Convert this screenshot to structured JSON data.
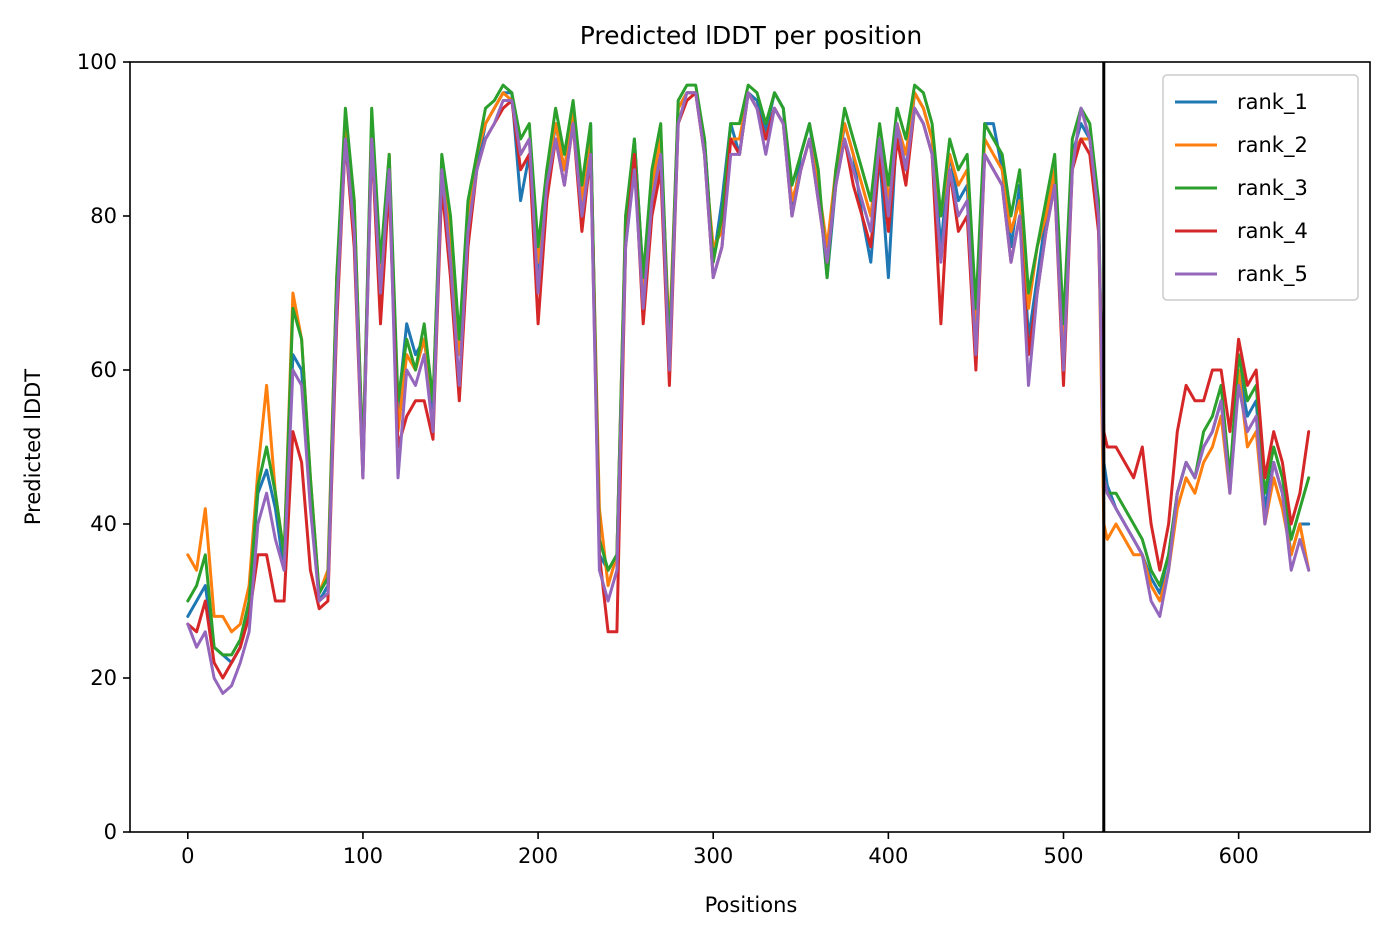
{
  "chart_data": {
    "type": "line",
    "title": "Predicted lDDT per position",
    "xlabel": "Positions",
    "ylabel": "Predicted lDDT",
    "xlim": [
      -33,
      675
    ],
    "ylim": [
      0,
      100
    ],
    "xticks": [
      0,
      100,
      200,
      300,
      400,
      500,
      600
    ],
    "yticks": [
      0,
      20,
      40,
      60,
      80,
      100
    ],
    "grid": false,
    "legend_position": "top-right",
    "chain_boundary_x": 523,
    "series": [
      {
        "name": "rank_1",
        "color": "#1f77b4",
        "x": [
          0,
          5,
          10,
          15,
          20,
          25,
          30,
          35,
          40,
          45,
          50,
          55,
          60,
          65,
          70,
          75,
          80,
          85,
          90,
          95,
          100,
          105,
          110,
          115,
          120,
          125,
          130,
          135,
          140,
          145,
          150,
          155,
          160,
          165,
          170,
          175,
          180,
          185,
          190,
          195,
          200,
          205,
          210,
          215,
          220,
          225,
          230,
          235,
          240,
          245,
          250,
          255,
          260,
          265,
          270,
          275,
          280,
          285,
          290,
          295,
          300,
          305,
          310,
          315,
          320,
          325,
          330,
          335,
          340,
          345,
          350,
          355,
          360,
          365,
          370,
          375,
          380,
          385,
          390,
          395,
          400,
          405,
          410,
          415,
          420,
          425,
          430,
          435,
          440,
          445,
          450,
          455,
          460,
          465,
          470,
          475,
          480,
          485,
          490,
          495,
          500,
          505,
          510,
          515,
          520,
          523,
          525,
          530,
          535,
          540,
          545,
          550,
          555,
          560,
          565,
          570,
          575,
          580,
          585,
          590,
          595,
          600,
          605,
          610,
          615,
          620,
          625,
          630,
          635,
          640
        ],
        "y": [
          28,
          30,
          32,
          24,
          23,
          22,
          24,
          30,
          44,
          47,
          42,
          34,
          62,
          60,
          44,
          30,
          32,
          70,
          92,
          80,
          48,
          92,
          68,
          86,
          55,
          66,
          62,
          64,
          55,
          86,
          76,
          62,
          78,
          86,
          92,
          94,
          96,
          96,
          82,
          88,
          72,
          84,
          92,
          86,
          94,
          80,
          92,
          36,
          34,
          36,
          78,
          90,
          72,
          84,
          88,
          60,
          94,
          96,
          96,
          90,
          74,
          82,
          92,
          88,
          96,
          95,
          91,
          96,
          94,
          80,
          88,
          92,
          84,
          72,
          84,
          92,
          88,
          80,
          74,
          88,
          72,
          92,
          86,
          96,
          94,
          90,
          76,
          88,
          82,
          84,
          62,
          92,
          92,
          86,
          76,
          84,
          64,
          72,
          80,
          86,
          60,
          88,
          92,
          90,
          80,
          48,
          45,
          42,
          40,
          38,
          36,
          33,
          31,
          36,
          44,
          48,
          46,
          50,
          52,
          56,
          46,
          60,
          54,
          56,
          42,
          48,
          44,
          36,
          40,
          40
        ]
      },
      {
        "name": "rank_2",
        "color": "#ff7f0e",
        "x": [
          0,
          5,
          10,
          15,
          20,
          25,
          30,
          35,
          40,
          45,
          50,
          55,
          60,
          65,
          70,
          75,
          80,
          85,
          90,
          95,
          100,
          105,
          110,
          115,
          120,
          125,
          130,
          135,
          140,
          145,
          150,
          155,
          160,
          165,
          170,
          175,
          180,
          185,
          190,
          195,
          200,
          205,
          210,
          215,
          220,
          225,
          230,
          235,
          240,
          245,
          250,
          255,
          260,
          265,
          270,
          275,
          280,
          285,
          290,
          295,
          300,
          305,
          310,
          315,
          320,
          325,
          330,
          335,
          340,
          345,
          350,
          355,
          360,
          365,
          370,
          375,
          380,
          385,
          390,
          395,
          400,
          405,
          410,
          415,
          420,
          425,
          430,
          435,
          440,
          445,
          450,
          455,
          460,
          465,
          470,
          475,
          480,
          485,
          490,
          495,
          500,
          505,
          510,
          515,
          520,
          523,
          525,
          530,
          535,
          540,
          545,
          550,
          555,
          560,
          565,
          570,
          575,
          580,
          585,
          590,
          595,
          600,
          605,
          610,
          615,
          620,
          625,
          630,
          635,
          640
        ],
        "y": [
          36,
          34,
          42,
          28,
          28,
          26,
          27,
          32,
          47,
          58,
          44,
          36,
          70,
          64,
          46,
          31,
          34,
          72,
          92,
          82,
          48,
          92,
          72,
          88,
          52,
          62,
          60,
          64,
          56,
          87,
          78,
          62,
          80,
          88,
          92,
          94,
          96,
          95,
          88,
          90,
          74,
          86,
          92,
          86,
          94,
          82,
          90,
          42,
          32,
          36,
          80,
          88,
          70,
          84,
          90,
          64,
          94,
          96,
          96,
          88,
          76,
          78,
          90,
          90,
          96,
          94,
          90,
          94,
          92,
          82,
          86,
          90,
          84,
          76,
          86,
          92,
          88,
          84,
          80,
          90,
          82,
          92,
          88,
          96,
          94,
          90,
          80,
          88,
          84,
          86,
          66,
          90,
          88,
          86,
          78,
          82,
          68,
          76,
          80,
          86,
          64,
          88,
          90,
          90,
          80,
          40,
          38,
          40,
          38,
          36,
          36,
          32,
          30,
          34,
          42,
          46,
          44,
          48,
          50,
          54,
          44,
          60,
          50,
          52,
          40,
          46,
          42,
          36,
          40,
          34
        ]
      },
      {
        "name": "rank_3",
        "color": "#2ca02c",
        "x": [
          0,
          5,
          10,
          15,
          20,
          25,
          30,
          35,
          40,
          45,
          50,
          55,
          60,
          65,
          70,
          75,
          80,
          85,
          90,
          95,
          100,
          105,
          110,
          115,
          120,
          125,
          130,
          135,
          140,
          145,
          150,
          155,
          160,
          165,
          170,
          175,
          180,
          185,
          190,
          195,
          200,
          205,
          210,
          215,
          220,
          225,
          230,
          235,
          240,
          245,
          250,
          255,
          260,
          265,
          270,
          275,
          280,
          285,
          290,
          295,
          300,
          305,
          310,
          315,
          320,
          325,
          330,
          335,
          340,
          345,
          350,
          355,
          360,
          365,
          370,
          375,
          380,
          385,
          390,
          395,
          400,
          405,
          410,
          415,
          420,
          425,
          430,
          435,
          440,
          445,
          450,
          455,
          460,
          465,
          470,
          475,
          480,
          485,
          490,
          495,
          500,
          505,
          510,
          515,
          520,
          523,
          525,
          530,
          535,
          540,
          545,
          550,
          555,
          560,
          565,
          570,
          575,
          580,
          585,
          590,
          595,
          600,
          605,
          610,
          615,
          620,
          625,
          630,
          635,
          640
        ],
        "y": [
          30,
          32,
          36,
          24,
          23,
          23,
          25,
          30,
          45,
          50,
          44,
          36,
          68,
          64,
          46,
          31,
          33,
          72,
          94,
          82,
          48,
          94,
          74,
          88,
          56,
          64,
          60,
          66,
          56,
          88,
          80,
          64,
          82,
          88,
          94,
          95,
          97,
          96,
          90,
          92,
          76,
          86,
          94,
          88,
          95,
          84,
          92,
          38,
          34,
          36,
          80,
          90,
          72,
          86,
          92,
          62,
          95,
          97,
          97,
          90,
          74,
          80,
          92,
          92,
          97,
          96,
          92,
          96,
          94,
          84,
          88,
          92,
          86,
          72,
          86,
          94,
          90,
          86,
          82,
          92,
          84,
          94,
          90,
          97,
          96,
          92,
          80,
          90,
          86,
          88,
          68,
          92,
          90,
          88,
          80,
          86,
          70,
          76,
          82,
          88,
          66,
          90,
          94,
          92,
          82,
          46,
          44,
          44,
          42,
          40,
          38,
          34,
          32,
          36,
          44,
          48,
          46,
          52,
          54,
          58,
          46,
          62,
          56,
          58,
          44,
          50,
          46,
          38,
          42,
          46
        ]
      },
      {
        "name": "rank_4",
        "color": "#d62728",
        "x": [
          0,
          5,
          10,
          15,
          20,
          25,
          30,
          35,
          40,
          45,
          50,
          55,
          60,
          65,
          70,
          75,
          80,
          85,
          90,
          95,
          100,
          105,
          110,
          115,
          120,
          125,
          130,
          135,
          140,
          145,
          150,
          155,
          160,
          165,
          170,
          175,
          180,
          185,
          190,
          195,
          200,
          205,
          210,
          215,
          220,
          225,
          230,
          235,
          240,
          245,
          250,
          255,
          260,
          265,
          270,
          275,
          280,
          285,
          290,
          295,
          300,
          305,
          310,
          315,
          320,
          325,
          330,
          335,
          340,
          345,
          350,
          355,
          360,
          365,
          370,
          375,
          380,
          385,
          390,
          395,
          400,
          405,
          410,
          415,
          420,
          425,
          430,
          435,
          440,
          445,
          450,
          455,
          460,
          465,
          470,
          475,
          480,
          485,
          490,
          495,
          500,
          505,
          510,
          515,
          520,
          523,
          525,
          530,
          535,
          540,
          545,
          550,
          555,
          560,
          565,
          570,
          575,
          580,
          585,
          590,
          595,
          600,
          605,
          610,
          615,
          620,
          625,
          630,
          635,
          640
        ],
        "y": [
          27,
          26,
          30,
          22,
          20,
          22,
          24,
          28,
          36,
          36,
          30,
          30,
          52,
          48,
          34,
          29,
          30,
          66,
          90,
          76,
          46,
          90,
          66,
          84,
          50,
          54,
          56,
          56,
          51,
          84,
          72,
          56,
          76,
          86,
          90,
          92,
          94,
          95,
          86,
          88,
          66,
          82,
          90,
          84,
          92,
          78,
          88,
          36,
          26,
          26,
          76,
          88,
          66,
          80,
          86,
          58,
          92,
          95,
          96,
          88,
          72,
          76,
          90,
          88,
          96,
          94,
          90,
          94,
          92,
          80,
          86,
          90,
          82,
          74,
          84,
          90,
          84,
          80,
          76,
          88,
          78,
          90,
          84,
          94,
          92,
          88,
          66,
          86,
          78,
          80,
          60,
          88,
          86,
          84,
          74,
          80,
          62,
          70,
          78,
          84,
          58,
          86,
          90,
          88,
          78,
          52,
          50,
          50,
          48,
          46,
          50,
          40,
          34,
          40,
          52,
          58,
          56,
          56,
          60,
          60,
          52,
          64,
          58,
          60,
          46,
          52,
          48,
          40,
          44,
          52
        ]
      },
      {
        "name": "rank_5",
        "color": "#9467bd",
        "x": [
          0,
          5,
          10,
          15,
          20,
          25,
          30,
          35,
          40,
          45,
          50,
          55,
          60,
          65,
          70,
          75,
          80,
          85,
          90,
          95,
          100,
          105,
          110,
          115,
          120,
          125,
          130,
          135,
          140,
          145,
          150,
          155,
          160,
          165,
          170,
          175,
          180,
          185,
          190,
          195,
          200,
          205,
          210,
          215,
          220,
          225,
          230,
          235,
          240,
          245,
          250,
          255,
          260,
          265,
          270,
          275,
          280,
          285,
          290,
          295,
          300,
          305,
          310,
          315,
          320,
          325,
          330,
          335,
          340,
          345,
          350,
          355,
          360,
          365,
          370,
          375,
          380,
          385,
          390,
          395,
          400,
          405,
          410,
          415,
          420,
          425,
          430,
          435,
          440,
          445,
          450,
          455,
          460,
          465,
          470,
          475,
          480,
          485,
          490,
          495,
          500,
          505,
          510,
          515,
          520,
          523,
          525,
          530,
          535,
          540,
          545,
          550,
          555,
          560,
          565,
          570,
          575,
          580,
          585,
          590,
          595,
          600,
          605,
          610,
          615,
          620,
          625,
          630,
          635,
          640
        ],
        "y": [
          27,
          24,
          26,
          20,
          18,
          19,
          22,
          26,
          40,
          44,
          38,
          34,
          60,
          58,
          42,
          30,
          31,
          68,
          90,
          78,
          46,
          90,
          70,
          86,
          46,
          60,
          58,
          62,
          52,
          86,
          74,
          58,
          78,
          86,
          90,
          92,
          95,
          95,
          88,
          90,
          70,
          84,
          90,
          84,
          92,
          80,
          88,
          34,
          30,
          34,
          76,
          86,
          68,
          82,
          88,
          60,
          92,
          96,
          96,
          88,
          72,
          76,
          88,
          88,
          96,
          94,
          88,
          94,
          92,
          80,
          86,
          90,
          82,
          74,
          84,
          90,
          86,
          82,
          78,
          90,
          80,
          92,
          86,
          94,
          92,
          88,
          74,
          86,
          80,
          82,
          62,
          88,
          86,
          84,
          74,
          80,
          58,
          70,
          78,
          84,
          60,
          86,
          94,
          90,
          80,
          46,
          44,
          42,
          40,
          38,
          36,
          30,
          28,
          34,
          44,
          48,
          46,
          50,
          52,
          56,
          44,
          58,
          52,
          54,
          40,
          48,
          44,
          34,
          38,
          34
        ]
      }
    ]
  }
}
